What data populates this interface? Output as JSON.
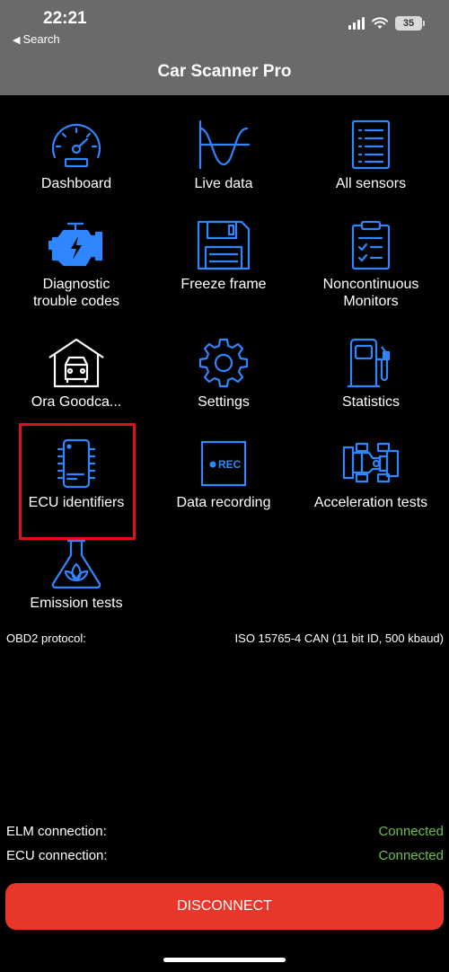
{
  "status_bar": {
    "time": "22:21",
    "back_label": "Search",
    "battery": "35"
  },
  "header": {
    "title": "Car Scanner Pro"
  },
  "menu": [
    {
      "label": "Dashboard",
      "icon": "gauge-icon"
    },
    {
      "label": "Live data",
      "icon": "waveform-icon"
    },
    {
      "label": "All sensors",
      "icon": "list-icon"
    },
    {
      "label": "Diagnostic\ntrouble codes",
      "icon": "engine-icon"
    },
    {
      "label": "Freeze frame",
      "icon": "floppy-disk-icon"
    },
    {
      "label": "Noncontinuous\nMonitors",
      "icon": "clipboard-check-icon"
    },
    {
      "label": "Ora Goodca...",
      "icon": "garage-car-icon"
    },
    {
      "label": "Settings",
      "icon": "gear-icon"
    },
    {
      "label": "Statistics",
      "icon": "fuel-pump-icon"
    },
    {
      "label": "ECU identifiers",
      "icon": "chip-icon"
    },
    {
      "label": "Data recording",
      "icon": "rec-icon"
    },
    {
      "label": "Acceleration tests",
      "icon": "race-car-icon"
    },
    {
      "label": "Emission tests",
      "icon": "flask-leaf-icon"
    }
  ],
  "protocol": {
    "label": "OBD2 protocol:",
    "value": "ISO 15765-4 CAN (11 bit ID, 500 kbaud)"
  },
  "elm": {
    "label": "ELM connection:",
    "value": "Connected"
  },
  "ecu": {
    "label": "ECU connection:",
    "value": "Connected"
  },
  "actions": {
    "disconnect_label": "DISCONNECT"
  },
  "colors": {
    "accent_blue": "#2f86ff",
    "connected_green": "#6cc04a",
    "disconnect_red": "#e8372a",
    "highlight_red": "#e0101a",
    "header_gray": "#6a6a6a"
  }
}
